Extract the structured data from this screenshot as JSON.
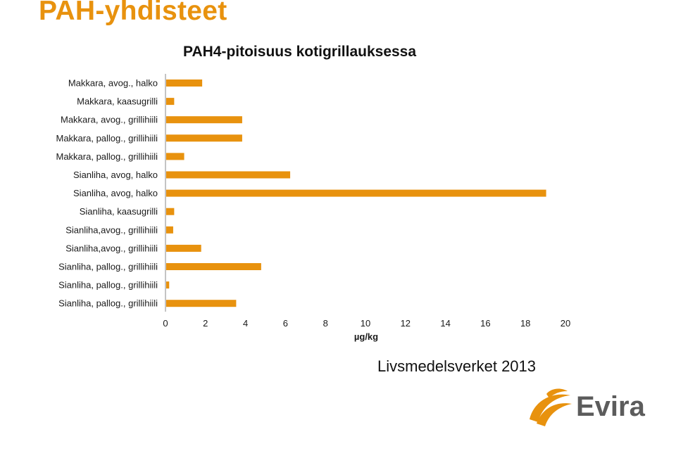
{
  "slide": {
    "title": "PAH-yhdisteet",
    "credit": "Livsmedelsverket 2013",
    "logo_text": "Evira"
  },
  "colors": {
    "accent": "#e8920e",
    "bar": "#e8920e",
    "logo_grey": "#5c5c5c"
  },
  "chart_data": {
    "type": "bar",
    "orientation": "horizontal",
    "title": "PAH4-pitoisuus kotigrillauksessa",
    "xlabel": "µg/kg",
    "ylabel": "",
    "xlim": [
      0,
      20
    ],
    "xticks": [
      0,
      2,
      4,
      6,
      8,
      10,
      12,
      14,
      16,
      18,
      20
    ],
    "grid": false,
    "legend": "none",
    "categories": [
      "Makkara, avog., halko",
      "Makkara, kaasugrilli",
      "Makkara, avog., grillihiili",
      "Makkara, pallog., grillihiili",
      "Makkara, pallog., grillihiili",
      "Sianliha, avog, halko",
      "Sianliha, avog, halko",
      "Sianliha, kaasugrilli",
      "Sianliha,avog., grillihiili",
      "Sianliha,avog., grillihiili",
      "Sianliha, pallog., grillihiili",
      "Sianliha, pallog., grillihiili",
      "Sianliha, pallog., grillihiili"
    ],
    "values": [
      1.8,
      0.4,
      3.8,
      3.8,
      0.9,
      6.2,
      19.0,
      0.4,
      0.35,
      1.75,
      4.75,
      0.15,
      3.5
    ]
  }
}
